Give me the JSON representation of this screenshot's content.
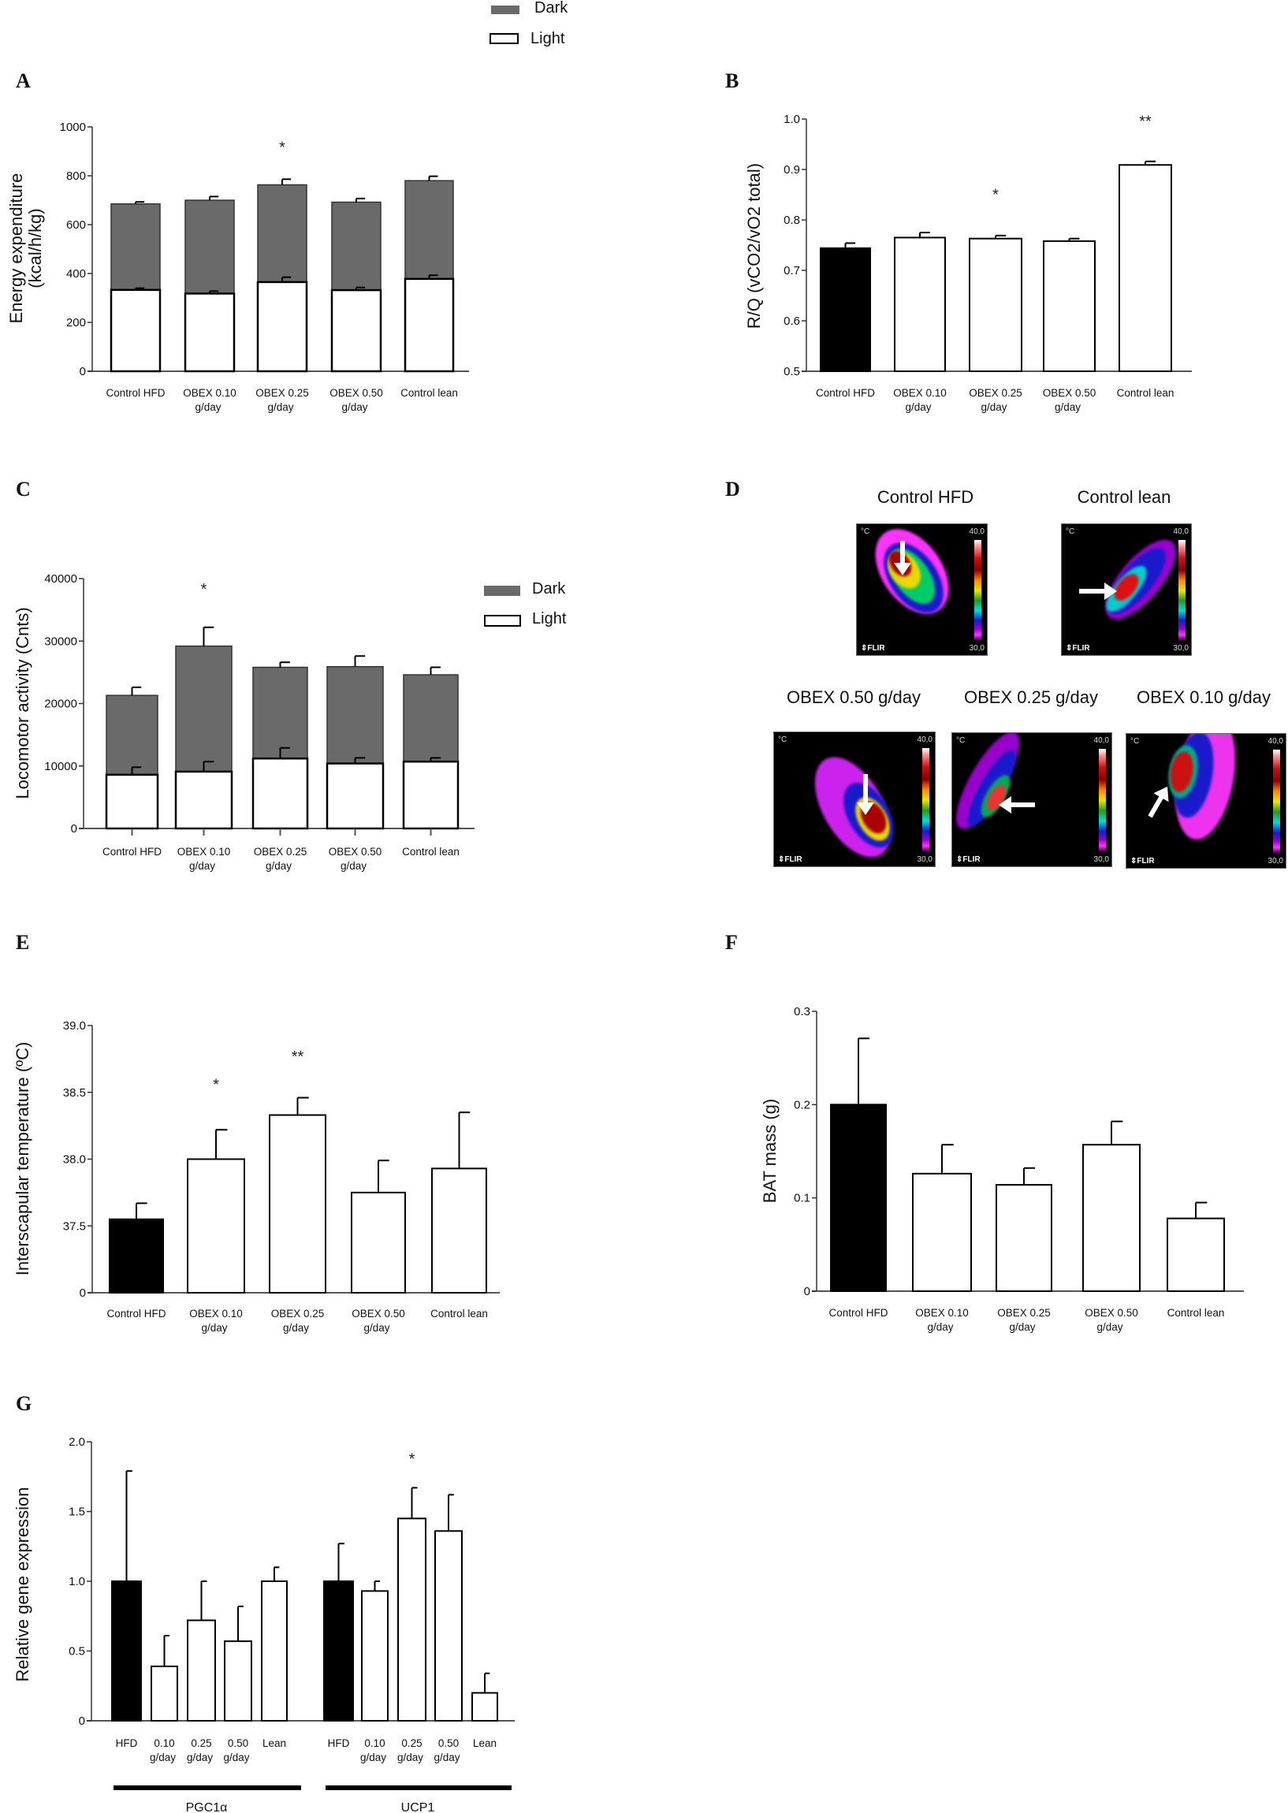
{
  "top_legend": {
    "dark_label": "Dark",
    "light_label": "Light",
    "dark_color": "#6a6a6a",
    "light_color": "#ffffff"
  },
  "panels": {
    "A": "A",
    "B": "B",
    "C": "C",
    "D": "D",
    "E": "E",
    "F": "F",
    "G": "G"
  },
  "thermal": {
    "unit": "°C",
    "max": "40,0",
    "min": "30,0",
    "brand": "⇕FLIR",
    "titles": [
      "Control HFD",
      "Control lean",
      "OBEX 0.50 g/day",
      "OBEX 0.25 g/day",
      "OBEX 0.10 g/day"
    ]
  },
  "chart_data": [
    {
      "id": "A",
      "type": "bar",
      "stacked": true,
      "title": "",
      "ylabel": [
        "Energy  expenditure",
        "(kcal/h/kg)"
      ],
      "xlabel": "",
      "categories": [
        [
          "Control HFD"
        ],
        [
          "OBEX 0.10",
          "g/day"
        ],
        [
          "OBEX 0.25",
          "g/day"
        ],
        [
          "OBEX 0.50",
          "g/day"
        ],
        [
          "Control lean"
        ]
      ],
      "ylim": [
        0,
        1000
      ],
      "yticks": [
        0,
        200,
        400,
        600,
        800,
        1000
      ],
      "ytick_labels": [
        "0",
        "200",
        "400",
        "600",
        "800",
        "1000"
      ],
      "series": [
        {
          "name": "Light",
          "color": "#ffffff",
          "values": [
            333,
            318,
            365,
            332,
            378
          ],
          "err_top": [
            340,
            328,
            385,
            343,
            393
          ]
        },
        {
          "name": "Dark",
          "color": "#6a6a6a",
          "values": [
            352,
            382,
            398,
            360,
            402
          ],
          "totals": [
            685,
            700,
            763,
            692,
            780
          ],
          "err_top": [
            693,
            715,
            786,
            707,
            798
          ]
        }
      ],
      "annotations": [
        {
          "category": 2,
          "text": "*",
          "y": 895
        }
      ],
      "legend": {
        "position": "top",
        "entries": [
          "Dark",
          "Light"
        ]
      },
      "grid": false
    },
    {
      "id": "B",
      "type": "bar",
      "title": "",
      "ylabel": [
        "R/Q  (vCO2/vO2 total)"
      ],
      "categories": [
        [
          "Control HFD"
        ],
        [
          "OBEX 0.10",
          "g/day"
        ],
        [
          "OBEX 0.25",
          "g/day"
        ],
        [
          "OBEX 0.50",
          "g/day"
        ],
        [
          "Control lean"
        ]
      ],
      "ylim": [
        0.5,
        1.0
      ],
      "yticks": [
        0.5,
        0.6,
        0.7,
        0.8,
        0.9,
        1.0
      ],
      "ytick_labels": [
        "0.5",
        "0.6",
        "0.7",
        "0.8",
        "0.9",
        "1.0"
      ],
      "values": [
        0.744,
        0.765,
        0.763,
        0.758,
        0.909
      ],
      "err_top": [
        0.754,
        0.775,
        0.769,
        0.763,
        0.916
      ],
      "colors": [
        "#000000",
        "#ffffff",
        "#ffffff",
        "#ffffff",
        "#ffffff"
      ],
      "annotations": [
        {
          "category": 2,
          "text": "*",
          "y": 0.84
        },
        {
          "category": 4,
          "text": "**",
          "y": 0.985
        }
      ],
      "grid": false
    },
    {
      "id": "C",
      "type": "bar",
      "stacked": true,
      "title": "",
      "ylabel": [
        "Locomotor activity (Cnts)"
      ],
      "categories": [
        [
          "Control HFD"
        ],
        [
          "OBEX 0.10",
          "g/day"
        ],
        [
          "OBEX 0.25",
          "g/day"
        ],
        [
          "OBEX 0.50",
          "g/day"
        ],
        [
          "Control lean"
        ]
      ],
      "ylim": [
        0,
        40000
      ],
      "yticks": [
        0,
        10000,
        20000,
        30000,
        40000
      ],
      "ytick_labels": [
        "0",
        "10000",
        "20000",
        "30000",
        "40000"
      ],
      "series": [
        {
          "name": "Light",
          "color": "#ffffff",
          "values": [
            8600,
            9100,
            11200,
            10400,
            10700
          ],
          "err_top": [
            9800,
            10700,
            12900,
            11300,
            11300
          ]
        },
        {
          "name": "Dark",
          "color": "#6a6a6a",
          "values": [
            12700,
            20100,
            14600,
            15500,
            13900
          ],
          "totals": [
            21300,
            29200,
            25800,
            25900,
            24600
          ],
          "err_top": [
            22600,
            32200,
            26600,
            27600,
            25800
          ]
        }
      ],
      "annotations": [
        {
          "category": 1,
          "text": "*",
          "y": 37500
        }
      ],
      "legend": {
        "position": "right",
        "entries": [
          "Dark",
          "Light"
        ]
      },
      "grid": false
    },
    {
      "id": "E",
      "type": "bar",
      "title": "",
      "ylabel": [
        "Interscapular temperature (ºC)"
      ],
      "categories": [
        [
          "Control HFD"
        ],
        [
          "OBEX 0.10",
          "g/day"
        ],
        [
          "OBEX 0.25",
          "g/day"
        ],
        [
          "OBEX 0.50",
          "g/day"
        ],
        [
          "Control lean"
        ]
      ],
      "ylim": [
        37.0,
        39.0
      ],
      "axis_break": {
        "below": 37.5,
        "label": "0"
      },
      "yticks": [
        37.0,
        37.5,
        38.0,
        38.5,
        39.0
      ],
      "ytick_labels": [
        "0",
        "37.5",
        "38.0",
        "38.5",
        "39.0"
      ],
      "values": [
        37.55,
        38.0,
        38.33,
        37.75,
        37.93
      ],
      "err_top": [
        37.67,
        38.22,
        38.46,
        37.99,
        38.35
      ],
      "colors": [
        "#000000",
        "#ffffff",
        "#ffffff",
        "#ffffff",
        "#ffffff"
      ],
      "annotations": [
        {
          "category": 1,
          "text": "*",
          "y": 38.52
        },
        {
          "category": 2,
          "text": "**",
          "y": 38.73
        }
      ],
      "grid": false
    },
    {
      "id": "F",
      "type": "bar",
      "title": "",
      "ylabel": [
        "BAT mass (g)"
      ],
      "categories": [
        [
          "Control HFD"
        ],
        [
          "OBEX 0.10",
          "g/day"
        ],
        [
          "OBEX 0.25",
          "g/day"
        ],
        [
          "OBEX 0.50",
          "g/day"
        ],
        [
          "Control lean"
        ]
      ],
      "ylim": [
        0,
        0.3
      ],
      "yticks": [
        0,
        0.1,
        0.2,
        0.3
      ],
      "ytick_labels": [
        "0",
        "0.1",
        "0.2",
        "0.3"
      ],
      "values": [
        0.2,
        0.126,
        0.114,
        0.157,
        0.078
      ],
      "err_top": [
        0.271,
        0.157,
        0.132,
        0.182,
        0.095
      ],
      "colors": [
        "#000000",
        "#ffffff",
        "#ffffff",
        "#ffffff",
        "#ffffff"
      ],
      "annotations": [],
      "grid": false
    },
    {
      "id": "G",
      "type": "bar",
      "title": "",
      "ylabel": [
        "Relative gene expression"
      ],
      "categories": [
        [
          "HFD"
        ],
        [
          "0.10",
          "g/day"
        ],
        [
          "0.25",
          "g/day"
        ],
        [
          "0.50",
          "g/day"
        ],
        [
          "Lean"
        ],
        [
          "HFD"
        ],
        [
          "0.10",
          "g/day"
        ],
        [
          "0.25",
          "g/day"
        ],
        [
          "0.50",
          "g/day"
        ],
        [
          "Lean"
        ]
      ],
      "groups": [
        {
          "label": "PGC1α",
          "from": 0,
          "to": 4
        },
        {
          "label": "UCP1",
          "from": 5,
          "to": 9
        }
      ],
      "ylim": [
        0,
        2.0
      ],
      "yticks": [
        0,
        0.5,
        1.0,
        1.5,
        2.0
      ],
      "ytick_labels": [
        "0",
        "0.5",
        "1.0",
        "1.5",
        "2.0"
      ],
      "series": [
        {
          "name": "PGC1α",
          "values": [
            1.0,
            0.39,
            0.72,
            0.57,
            1.0
          ],
          "err_top": [
            1.79,
            0.61,
            1.0,
            0.82,
            1.1
          ]
        },
        {
          "name": "UCP1",
          "values": [
            1.0,
            0.93,
            1.45,
            1.36,
            0.2
          ],
          "err_top": [
            1.27,
            1.0,
            1.67,
            1.62,
            0.34
          ]
        }
      ],
      "values": [
        1.0,
        0.39,
        0.72,
        0.57,
        1.0,
        1.0,
        0.93,
        1.45,
        1.36,
        0.2
      ],
      "err_top": [
        1.79,
        0.61,
        1.0,
        0.82,
        1.1,
        1.27,
        1.0,
        1.67,
        1.62,
        0.34
      ],
      "colors": [
        "#000000",
        "#ffffff",
        "#ffffff",
        "#ffffff",
        "#ffffff",
        "#000000",
        "#ffffff",
        "#ffffff",
        "#ffffff",
        "#ffffff"
      ],
      "annotations": [
        {
          "category": 7,
          "text": "*",
          "y": 1.84
        }
      ],
      "grid": false
    }
  ]
}
